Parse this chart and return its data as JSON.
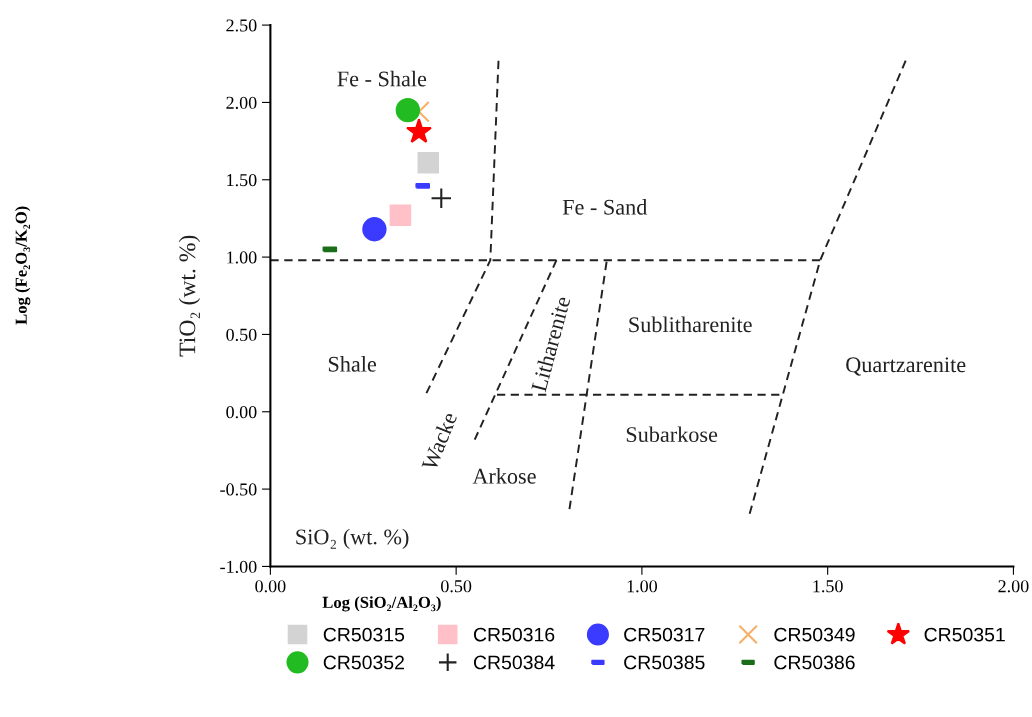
{
  "chart_data": {
    "type": "scatter",
    "xlabel": "Log (SiO₂/Al₂O₃)",
    "ylabel": "TiO₂ (wt. %)",
    "xlim": [
      0,
      2
    ],
    "ylim": [
      -1,
      2.5
    ],
    "xticks": [
      {
        "value": 0,
        "label": "0.00"
      },
      {
        "value": 0.5,
        "label": "0.50"
      },
      {
        "value": 1,
        "label": "1.00"
      },
      {
        "value": 1.5,
        "label": "1.50"
      },
      {
        "value": 2,
        "label": "2.00"
      }
    ],
    "yticks": [
      {
        "value": -1,
        "label": "-1.00"
      },
      {
        "value": -0.5,
        "label": "-0.50"
      },
      {
        "value": 0,
        "label": "0.00"
      },
      {
        "value": 0.5,
        "label": "0.50"
      },
      {
        "value": 1,
        "label": "1.00"
      },
      {
        "value": 1.5,
        "label": "1.50"
      },
      {
        "value": 2,
        "label": "2.00"
      },
      {
        "value": 2.5,
        "label": "2.50"
      }
    ],
    "grid": false,
    "legend": "bottom",
    "series": [
      {
        "name": "CR50315",
        "color": "#d3d3d3",
        "marker": "square",
        "x": [
          0.425
        ],
        "values": [
          1.61
        ]
      },
      {
        "name": "CR50316",
        "color": "#ffc0c8",
        "marker": "square",
        "x": [
          0.35
        ],
        "values": [
          1.27
        ]
      },
      {
        "name": "CR50317",
        "color": "#3b3bff",
        "marker": "circle",
        "x": [
          0.28
        ],
        "values": [
          1.18
        ]
      },
      {
        "name": "CR50349",
        "color": "#f5b06a",
        "marker": "cross",
        "x": [
          0.4
        ],
        "values": [
          1.94
        ]
      },
      {
        "name": "CR50351",
        "color": "#ff0000",
        "marker": "star",
        "x": [
          0.4
        ],
        "values": [
          1.81
        ]
      },
      {
        "name": "CR50352",
        "color": "#22bb22",
        "marker": "circle",
        "x": [
          0.37
        ],
        "values": [
          1.95
        ]
      },
      {
        "name": "CR50384",
        "color": "#222222",
        "marker": "plus",
        "x": [
          0.46
        ],
        "values": [
          1.38
        ]
      },
      {
        "name": "CR50385",
        "color": "#3b3bff",
        "marker": "square",
        "x": [
          0.41
        ],
        "values": [
          1.46
        ]
      },
      {
        "name": "CR50386",
        "color": "#1a6e1a",
        "marker": "square",
        "x": [
          0.16
        ],
        "values": [
          1.05
        ]
      },
      {
        "type": "line",
        "color": "#222222",
        "line_style": "dashed",
        "x": [
          0.614,
          0.592,
          0.42
        ],
        "values": [
          2.27,
          0.98,
          0.12
        ]
      },
      {
        "type": "line",
        "color": "#222222",
        "line_style": "dashed",
        "x": [
          0,
          1.48
        ],
        "values": [
          0.98,
          0.98
        ]
      },
      {
        "type": "line",
        "color": "#222222",
        "line_style": "dashed",
        "x": [
          0.77,
          0.55
        ],
        "values": [
          0.98,
          -0.18
        ]
      },
      {
        "type": "line",
        "color": "#222222",
        "line_style": "dashed",
        "x": [
          0.905,
          0.805
        ],
        "values": [
          0.97,
          -0.63
        ]
      },
      {
        "type": "line",
        "color": "#222222",
        "line_style": "dashed",
        "x": [
          0.61,
          1.37
        ],
        "values": [
          0.11,
          0.11
        ]
      },
      {
        "type": "line",
        "color": "#222222",
        "line_style": "dashed",
        "x": [
          1.71,
          1.48,
          1.29
        ],
        "values": [
          2.27,
          0.98,
          -0.66
        ]
      }
    ],
    "annotations": [
      "Fe - Shale",
      "Fe - Sand",
      "Shale",
      "Wacke",
      "Arkose",
      "Litharenite",
      "Sublitharenite",
      "Subarkose",
      "Quartzarenite",
      "SiO₂ (wt. %)",
      "Log (Fe₂O₃/K₂O)"
    ]
  }
}
